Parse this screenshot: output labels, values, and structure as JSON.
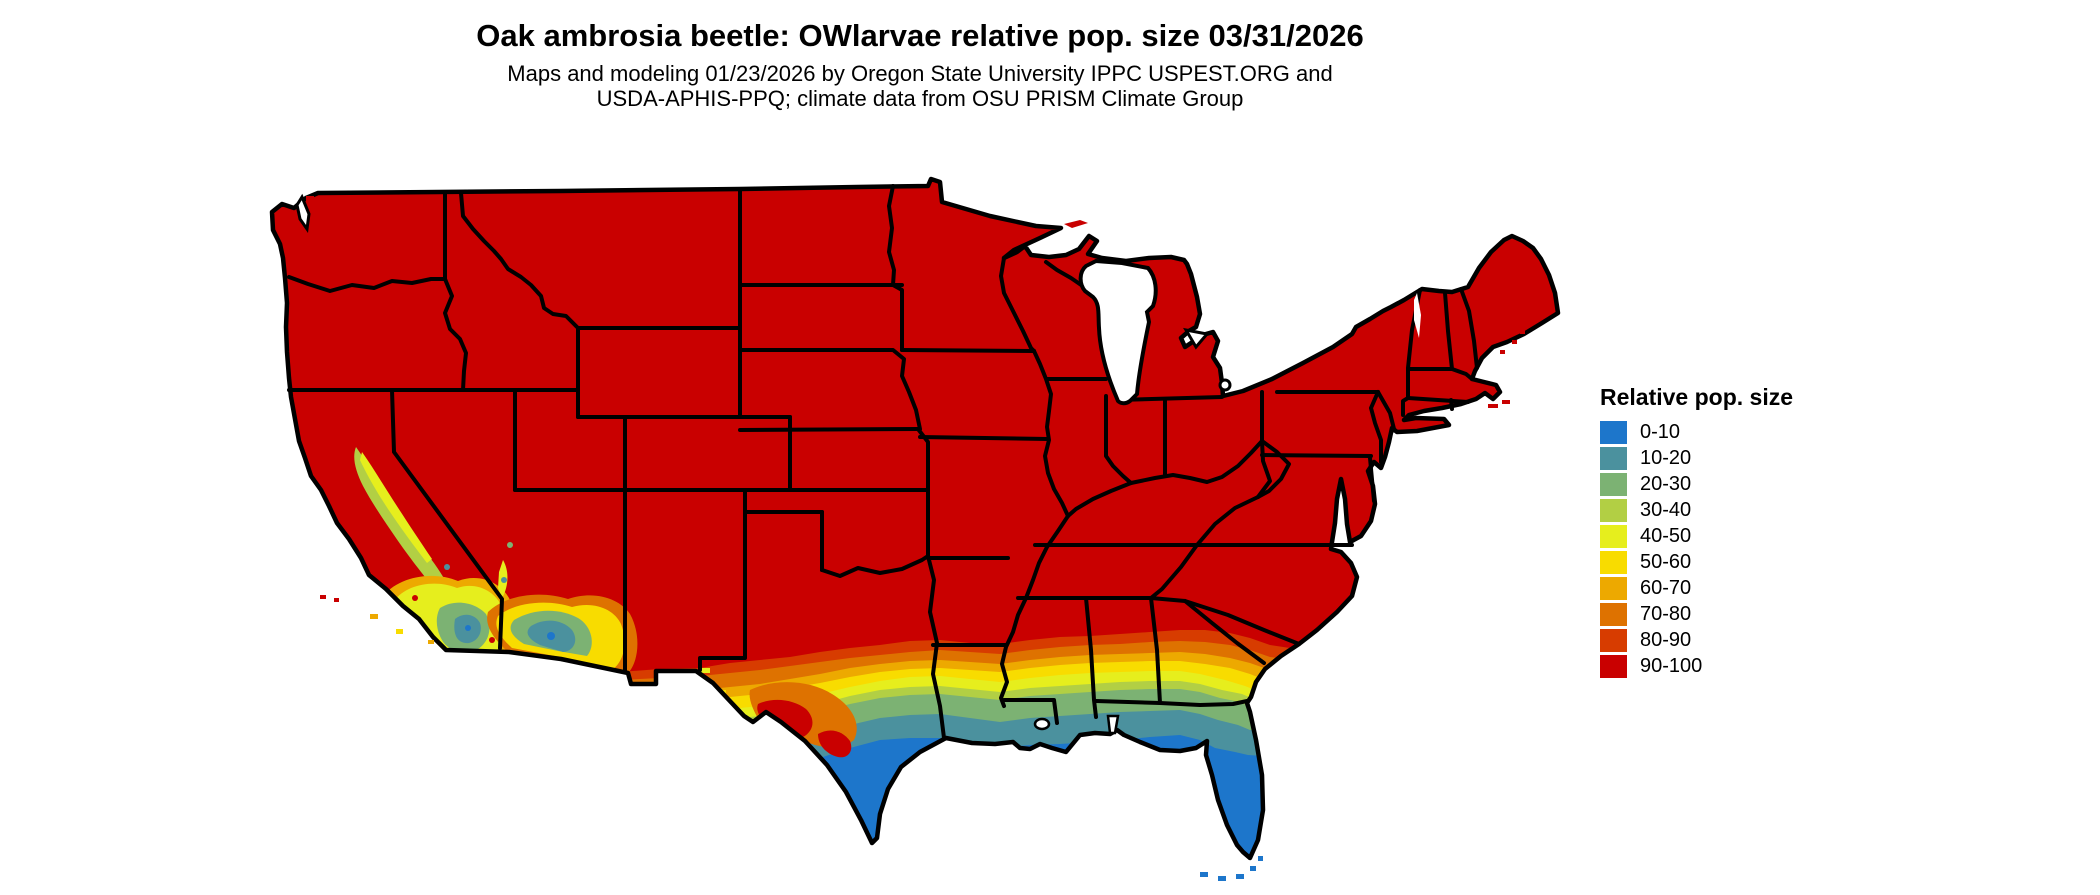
{
  "header": {
    "title": "Oak ambrosia beetle: OWlarvae relative pop. size 03/31/2026",
    "subtitle_line1": "Maps and modeling 01/23/2026 by Oregon State University IPPC USPEST.ORG and",
    "subtitle_line2": "USDA-APHIS-PPQ; climate data from OSU PRISM Climate Group"
  },
  "legend": {
    "title": "Relative pop. size",
    "items": [
      {
        "label": "0-10",
        "color": "#1d76cb"
      },
      {
        "label": "10-20",
        "color": "#4b919e"
      },
      {
        "label": "20-30",
        "color": "#7cb273"
      },
      {
        "label": "30-40",
        "color": "#b2cf44"
      },
      {
        "label": "40-50",
        "color": "#e6ee1d"
      },
      {
        "label": "50-60",
        "color": "#f8dc00"
      },
      {
        "label": "60-70",
        "color": "#eda900"
      },
      {
        "label": "70-80",
        "color": "#de7200"
      },
      {
        "label": "80-90",
        "color": "#d73c00"
      },
      {
        "label": "90-100",
        "color": "#c90000"
      }
    ]
  },
  "map": {
    "region": "Continental United States",
    "border_color": "#000000",
    "water_color": "#ffffff",
    "base_class": "90-100",
    "palette": {
      "p0": "#1d76cb",
      "p10": "#4b919e",
      "p20": "#7cb273",
      "p30": "#b2cf44",
      "p40": "#e6ee1d",
      "p50": "#f8dc00",
      "p60": "#eda900",
      "p70": "#de7200",
      "p80": "#d73c00",
      "p90": "#c90000"
    },
    "regions_summary": [
      "Nearly all of CONUS shaded 90-100 (red)",
      "Gradient bands 80-90 down to 0-10 along southern Texas, Gulf Coast, southern Georgia and Florida",
      "South Texas tip and Florida peninsula shaded 0-10 (blue)",
      "Mixed 10-60 patches in southern California and southwestern Arizona",
      "Orange 60-80 patch in Big Bend / west Texas",
      "Florida Keys shown as blue specks"
    ]
  }
}
